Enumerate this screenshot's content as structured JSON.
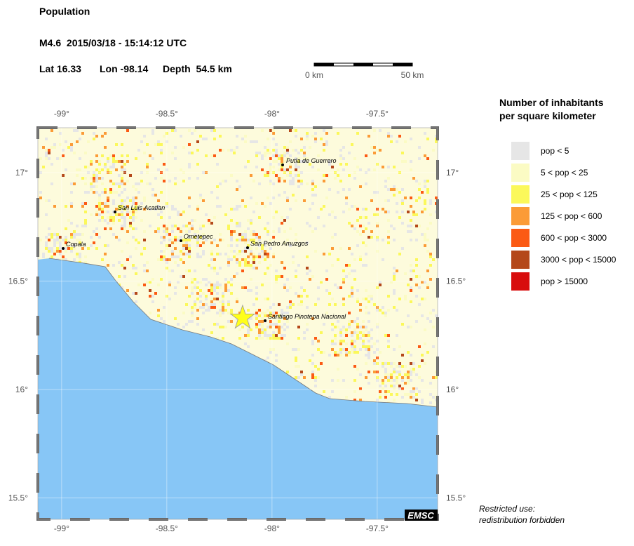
{
  "header": {
    "title": "Population",
    "event": "M4.6  2015/03/18 - 15:14:12 UTC",
    "lat": {
      "value": 16.33,
      "label": "Lat 16.33"
    },
    "lon": {
      "value": -98.14,
      "label": "Lon -98.14"
    },
    "depth": {
      "value": 54.5,
      "label": "Depth  54.5 km"
    }
  },
  "scale": {
    "labels": [
      "0 km",
      "50 km"
    ]
  },
  "map": {
    "xlim": [
      -99.113,
      -97.213
    ],
    "ylim": [
      15.401,
      17.207
    ],
    "xticks": [
      {
        "value": -99,
        "label": "-99°"
      },
      {
        "value": -98.5,
        "label": "-98.5°"
      },
      {
        "value": -98,
        "label": "-98°"
      },
      {
        "value": -97.5,
        "label": "-97.5°"
      }
    ],
    "yticks": [
      {
        "value": 17,
        "label": "17°"
      },
      {
        "value": 16.5,
        "label": "16.5°"
      },
      {
        "value": 16,
        "label": "16°"
      },
      {
        "value": 15.5,
        "label": "15.5°"
      }
    ],
    "cities": [
      "Putla de Guerrero",
      "San Luis Acatlan",
      "Ometepec",
      "Copala",
      "San Pedro Amuzgos",
      "Santiago Pinotepa Nacional"
    ]
  },
  "legend": {
    "title": [
      "Number of inhabitants",
      "per square kilometer"
    ],
    "items": [
      {
        "label": "pop < 5",
        "color": "#e6e6e6"
      },
      {
        "label": "5 < pop < 25",
        "color": "#fbfbc4"
      },
      {
        "label": "25 < pop < 125",
        "color": "#fbf85a"
      },
      {
        "label": "125 < pop < 600",
        "color": "#fb9b37"
      },
      {
        "label": "600 < pop < 3000",
        "color": "#fb5a14"
      },
      {
        "label": "3000 < pop < 15000",
        "color": "#b4481a"
      },
      {
        "label": "pop > 15000",
        "color": "#d80d0d"
      }
    ]
  },
  "footer": {
    "notice": [
      "Restricted use:",
      "redistribution forbidden"
    ],
    "credit": "EMSC"
  }
}
